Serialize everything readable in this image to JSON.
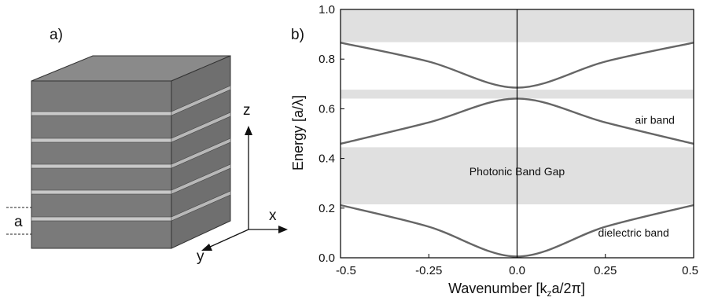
{
  "panel_a": {
    "label": "a)",
    "axis_z": "z",
    "axis_x": "x",
    "axis_y": "y",
    "period_label": "a"
  },
  "panel_b": {
    "label": "b)"
  },
  "chart_data": {
    "type": "line",
    "xlabel": "Wavenumber [k",
    "xlabel_sub": "z",
    "xlabel_rest": "a/2π]",
    "ylabel": "Energy [a/λ]",
    "xlim": [
      -0.5,
      0.5
    ],
    "ylim": [
      0.0,
      1.0
    ],
    "xticks": [
      -0.5,
      -0.25,
      0.0,
      0.25,
      0.5
    ],
    "xtick_labels": [
      "-0.5",
      "-0.25",
      "0.0",
      "0.25",
      "0.5"
    ],
    "yticks": [
      0.0,
      0.2,
      0.4,
      0.6,
      0.8,
      1.0
    ],
    "ytick_labels": [
      "0.0",
      "0.2",
      "0.4",
      "0.6",
      "0.8",
      "1.0"
    ],
    "gaps": [
      {
        "from": 0.215,
        "to": 0.445
      },
      {
        "from": 0.641,
        "to": 0.677
      },
      {
        "from": 0.868,
        "to": 1.0
      }
    ],
    "bands": [
      {
        "x": [
          -0.5,
          -0.25,
          0.0,
          0.25,
          0.5
        ],
        "y": [
          0.212,
          0.125,
          0.005,
          0.125,
          0.212
        ]
      },
      {
        "x": [
          -0.5,
          -0.25,
          0.0,
          0.25,
          0.5
        ],
        "y": [
          0.459,
          0.545,
          0.641,
          0.545,
          0.459
        ]
      },
      {
        "x": [
          -0.5,
          -0.25,
          0.0,
          0.25,
          0.5
        ],
        "y": [
          0.866,
          0.79,
          0.685,
          0.79,
          0.866
        ]
      }
    ],
    "annotations": [
      {
        "text": "Photonic Band Gap",
        "x": 0.0,
        "y": 0.333
      },
      {
        "text": "air band",
        "x": 0.39,
        "y": 0.54
      },
      {
        "text": "dielectric band",
        "x": 0.33,
        "y": 0.085
      }
    ],
    "colors": {
      "curve": "#666666",
      "gap": "#e0e0e0",
      "axis": "#000000"
    }
  }
}
